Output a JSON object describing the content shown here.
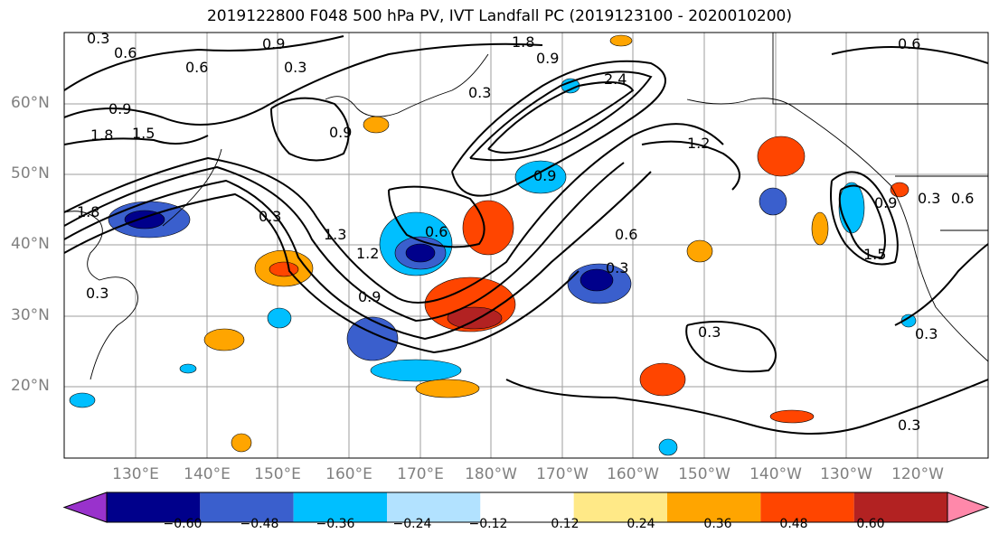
{
  "title": "2019122800 F048 500 hPa PV, IVT Landfall PC (2019123100 - 2020010200)",
  "lat_labels": [
    "60°N",
    "50°N",
    "40°N",
    "30°N",
    "20°N"
  ],
  "lon_labels": [
    "130°E",
    "140°E",
    "150°E",
    "160°E",
    "170°E",
    "180°W",
    "170°W",
    "160°W",
    "150°W",
    "140°W",
    "130°W",
    "120°W"
  ],
  "colorbar": {
    "ticks": [
      "−0.60",
      "−0.48",
      "−0.36",
      "−0.24",
      "−0.12",
      "0.12",
      "0.24",
      "0.36",
      "0.48",
      "0.60"
    ],
    "colors": [
      "#9932cc",
      "#00008b",
      "#3a5fcd",
      "#00bfff",
      "#b2e2ff",
      "#ffffff",
      "#ffe987",
      "#ffa500",
      "#ff4500",
      "#b22222",
      "#ff88aa"
    ]
  },
  "contour_labels": [
    {
      "text": "0.3"
    },
    {
      "text": "0.6"
    },
    {
      "text": "0.9"
    },
    {
      "text": "0.6"
    },
    {
      "text": "0.3"
    },
    {
      "text": "0.9"
    },
    {
      "text": "1.8"
    },
    {
      "text": "1.5"
    },
    {
      "text": "0.9"
    },
    {
      "text": "0.3"
    },
    {
      "text": "1.8"
    },
    {
      "text": "0.9"
    },
    {
      "text": "2.4"
    },
    {
      "text": "1.2"
    },
    {
      "text": "0.6"
    },
    {
      "text": "1.8"
    },
    {
      "text": "1.3"
    },
    {
      "text": "1.2"
    },
    {
      "text": "0.6"
    },
    {
      "text": "0.9"
    },
    {
      "text": "0.6"
    },
    {
      "text": "0.3"
    },
    {
      "text": "0.9"
    },
    {
      "text": "0.3"
    },
    {
      "text": "0.3"
    },
    {
      "text": "0.3"
    },
    {
      "text": "1.5"
    },
    {
      "text": "0.3"
    },
    {
      "text": "0.3"
    },
    {
      "text": "0.9"
    },
    {
      "text": "0.6"
    },
    {
      "text": "0.3"
    }
  ]
}
